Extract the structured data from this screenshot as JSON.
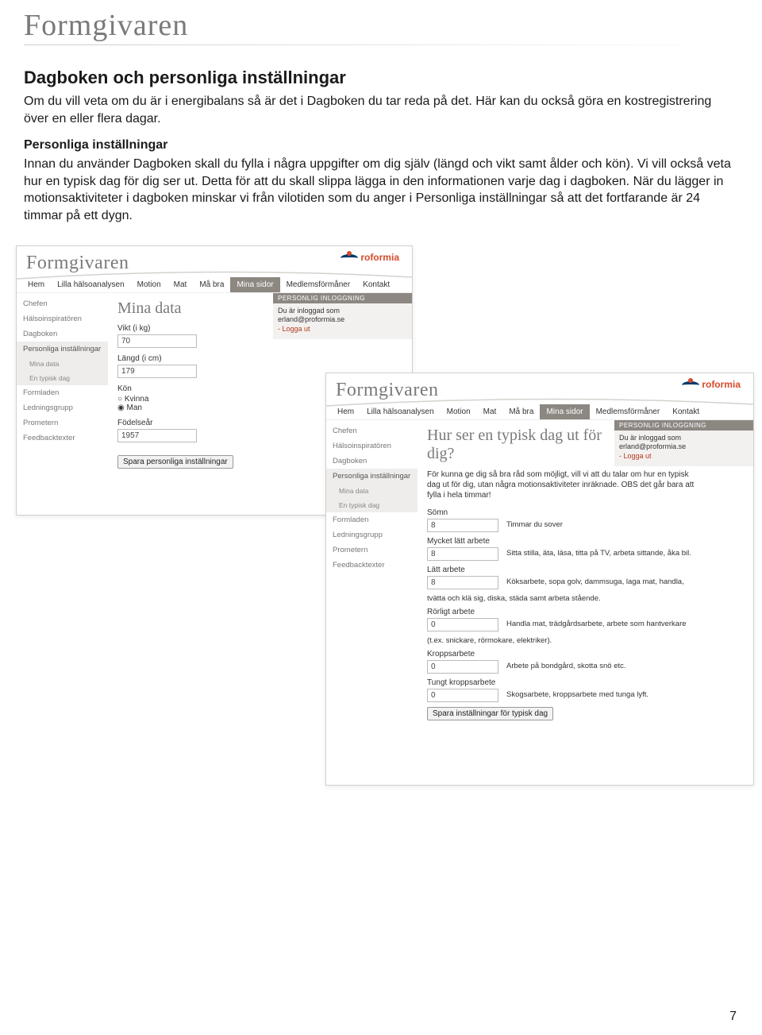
{
  "brand": "Formgivaren",
  "doc": {
    "h1": "Dagboken och personliga inställningar",
    "p1": "Om du vill veta om du är i energibalans så är det i Dagboken du tar reda på det. Här kan du också göra en kostregistrering över en eller flera dagar.",
    "sub": "Personliga inställningar",
    "p2": "Innan du använder Dagboken skall du fylla i några uppgifter om dig själv (längd och vikt samt ålder och kön). Vi vill också veta hur en typisk dag för dig ser ut. Detta för att du skall slippa lägga in den informationen varje dag i dagboken. När du lägger in motionsaktiviteter i dagboken minskar vi från vilotiden som du anger i Personliga inställningar så att det fortfarande är 24 timmar på ett dygn."
  },
  "nav": {
    "items": [
      "Hem",
      "Lilla hälsoanalysen",
      "Motion",
      "Mat",
      "Må bra",
      "Mina sidor",
      "Medlemsförmåner",
      "Kontakt"
    ],
    "activeIndex": 5
  },
  "sidebar": {
    "items": [
      {
        "label": "Chefen"
      },
      {
        "label": "Hälsoinspiratören"
      },
      {
        "label": "Dagboken"
      },
      {
        "label": "Personliga inställningar",
        "shade": true
      },
      {
        "label": "Mina data",
        "sub": true,
        "shade": true
      },
      {
        "label": "En typisk dag",
        "sub": true,
        "shade": true
      },
      {
        "label": "Formladen"
      },
      {
        "label": "Ledningsgrupp"
      },
      {
        "label": "Prometern"
      },
      {
        "label": "Feedbacktexter"
      }
    ]
  },
  "login": {
    "heading": "PERSONLIG INLOGGNING",
    "text": "Du är inloggad som erland@proformia.se",
    "logout": "- Logga ut"
  },
  "logo_text": "roformia",
  "screenA": {
    "title": "Mina data",
    "vikt_label": "Vikt (i kg)",
    "vikt_value": "70",
    "langd_label": "Längd (i cm)",
    "langd_value": "179",
    "kon_label": "Kön",
    "kon_kvinna": "Kvinna",
    "kon_man": "Man",
    "fodelsear_label": "Födelseår",
    "fodelsear_value": "1957",
    "save": "Spara personliga inställningar"
  },
  "screenB": {
    "title": "Hur ser en typisk dag ut för dig?",
    "intro": "För kunna ge dig så bra råd som möjligt, vill vi att du talar om hur en typisk dag ut för dig, utan några motionsaktiviteter inräknade. OBS det går bara att fylla i hela timmar!",
    "rows": [
      {
        "label": "Sömn",
        "value": "8",
        "desc": "Timmar du sover"
      },
      {
        "label": "Mycket lätt arbete",
        "value": "8",
        "desc": "Sitta stilla, äta, läsa, titta på TV, arbeta sittande, åka bil."
      },
      {
        "label": "Lätt arbete",
        "value": "8",
        "desc": "Köksarbete, sopa golv, dammsuga, laga mat, handla,"
      },
      {
        "note": "tvätta och klä sig, diska, städa samt arbeta stående."
      },
      {
        "label": "Rörligt arbete",
        "value": "0",
        "desc": "Handla mat, trädgårdsarbete, arbete som hantverkare"
      },
      {
        "note": "(t.ex. snickare, rörmokare, elektriker)."
      },
      {
        "label": "Kroppsarbete",
        "value": "0",
        "desc": "Arbete på bondgård, skotta snö etc."
      },
      {
        "label": "Tungt kroppsarbete",
        "value": "0",
        "desc": "Skogsarbete, kroppsarbete med tunga lyft."
      }
    ],
    "save": "Spara inställningar för typisk dag"
  },
  "page_number": "7"
}
